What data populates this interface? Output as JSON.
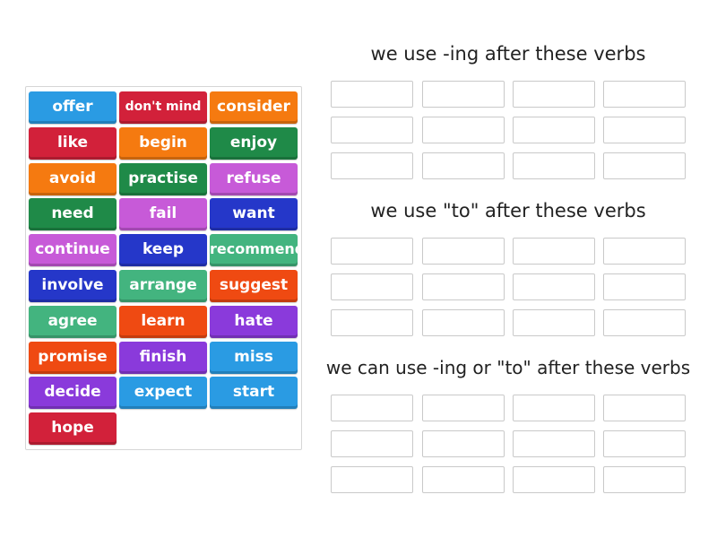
{
  "colors": {
    "blue": "#2a9be3",
    "red": "#d2213a",
    "orange": "#f57a10",
    "dark_green": "#1f8a48",
    "pink": "#c75ad8",
    "navy": "#2537c9",
    "teal": "#43b47f",
    "red_orange": "#ef4a12",
    "purple": "#8a3adb"
  },
  "word_bank": [
    {
      "label": "offer",
      "color": "#2a9be3"
    },
    {
      "label": "don't mind",
      "color": "#d2213a"
    },
    {
      "label": "consider",
      "color": "#f57a10"
    },
    {
      "label": "like",
      "color": "#d2213a"
    },
    {
      "label": "begin",
      "color": "#f57a10"
    },
    {
      "label": "enjoy",
      "color": "#1f8a48"
    },
    {
      "label": "avoid",
      "color": "#f57a10"
    },
    {
      "label": "practise",
      "color": "#1f8a48"
    },
    {
      "label": "refuse",
      "color": "#c75ad8"
    },
    {
      "label": "need",
      "color": "#1f8a48"
    },
    {
      "label": "fail",
      "color": "#c75ad8"
    },
    {
      "label": "want",
      "color": "#2537c9"
    },
    {
      "label": "continue",
      "color": "#c75ad8"
    },
    {
      "label": "keep",
      "color": "#2537c9"
    },
    {
      "label": "recommend",
      "color": "#43b47f"
    },
    {
      "label": "involve",
      "color": "#2537c9"
    },
    {
      "label": "arrange",
      "color": "#43b47f"
    },
    {
      "label": "suggest",
      "color": "#ef4a12"
    },
    {
      "label": "agree",
      "color": "#43b47f"
    },
    {
      "label": "learn",
      "color": "#ef4a12"
    },
    {
      "label": "hate",
      "color": "#8a3adb"
    },
    {
      "label": "promise",
      "color": "#ef4a12"
    },
    {
      "label": "finish",
      "color": "#8a3adb"
    },
    {
      "label": "miss",
      "color": "#2a9be3"
    },
    {
      "label": "decide",
      "color": "#8a3adb"
    },
    {
      "label": "expect",
      "color": "#2a9be3"
    },
    {
      "label": "start",
      "color": "#2a9be3"
    },
    {
      "label": "hope",
      "color": "#d2213a"
    }
  ],
  "groups": [
    {
      "heading": "we use -ing after these verbs"
    },
    {
      "heading": "we use \"to\" after these verbs"
    },
    {
      "heading": "we can use -ing or \"to\" after these verbs"
    }
  ]
}
